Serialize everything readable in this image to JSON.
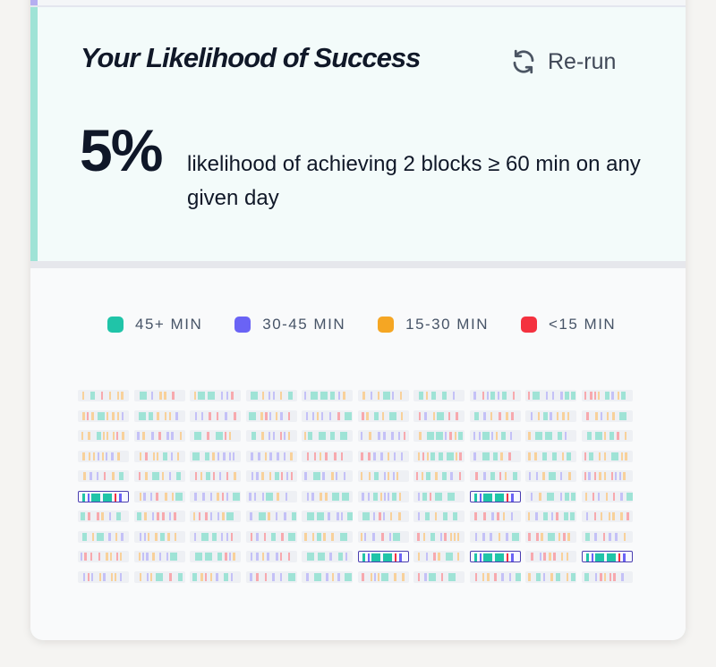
{
  "success": {
    "title": "Your Likelihood of Success",
    "rerun_label": "Re-run",
    "percentage": "5%",
    "description": "likelihood of achieving 2 blocks ≥ 60 min on any given day"
  },
  "legend": [
    {
      "label": "45+ MIN",
      "color": "#20c4a8"
    },
    {
      "label": "30-45 MIN",
      "color": "#6a63f5"
    },
    {
      "label": "15-30 MIN",
      "color": "#f5a623"
    },
    {
      "label": "<15 MIN",
      "color": "#f4313f"
    }
  ],
  "colors": {
    "teal": "#20c4a8",
    "purple": "#6a63f5",
    "orange": "#f5a623",
    "red": "#f4313f",
    "accent_bar": "#9fe3d6",
    "highlight_border": "#4b3fb0"
  },
  "simulation": {
    "rows": 10,
    "cols": 10,
    "highlighted_days": [
      [
        5,
        0
      ],
      [
        5,
        7
      ],
      [
        8,
        5
      ],
      [
        8,
        7
      ],
      [
        8,
        9
      ]
    ]
  }
}
